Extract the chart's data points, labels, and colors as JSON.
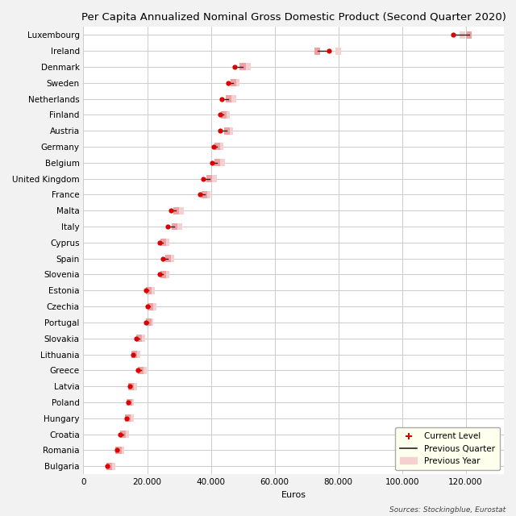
{
  "title": "Per Capita Annualized Nominal Gross Domestic Product (Second Quarter 2020)",
  "xlabel": "Euros",
  "source": "Sources: Stockingblue, Eurostat",
  "countries": [
    "Luxembourg",
    "Ireland",
    "Denmark",
    "Sweden",
    "Netherlands",
    "Finland",
    "Austria",
    "Germany",
    "Belgium",
    "United Kingdom",
    "France",
    "Malta",
    "Italy",
    "Cyprus",
    "Spain",
    "Slovenia",
    "Estonia",
    "Czechia",
    "Portugal",
    "Slovakia",
    "Lithuania",
    "Greece",
    "Latvia",
    "Poland",
    "Hungary",
    "Croatia",
    "Romania",
    "Bulgaria"
  ],
  "current": [
    116000,
    77000,
    47500,
    45500,
    43500,
    43000,
    43000,
    41000,
    40500,
    37500,
    36500,
    27500,
    26500,
    24000,
    25000,
    24000,
    19500,
    20000,
    19500,
    16500,
    15500,
    17000,
    14500,
    14000,
    13500,
    11500,
    10500,
    7500
  ],
  "prev_quarter": [
    121000,
    73500,
    50000,
    47000,
    45500,
    44000,
    45000,
    42000,
    42000,
    39500,
    38000,
    29000,
    28500,
    25000,
    26500,
    25000,
    20500,
    21000,
    20500,
    17500,
    16000,
    18000,
    15000,
    14500,
    14000,
    12500,
    11000,
    8000
  ],
  "prev_year": [
    119000,
    80000,
    51500,
    48000,
    47000,
    45000,
    46000,
    43000,
    43500,
    41000,
    39000,
    30500,
    30000,
    26000,
    27500,
    26000,
    21500,
    22000,
    21000,
    18500,
    17000,
    19000,
    16000,
    15000,
    15000,
    13500,
    12000,
    9000
  ],
  "dot_color": "#dd0000",
  "line_color": "#222222",
  "prev_quarter_color": "#f0a0a0",
  "prev_year_color": "#f5d0d0",
  "grid_color": "#cccccc",
  "bg_color": "#f2f2f2",
  "plot_bg_color": "#ffffff",
  "title_fontsize": 9.5,
  "label_fontsize": 8,
  "tick_fontsize": 7.5,
  "xticks": [
    0,
    20000,
    40000,
    60000,
    80000,
    100000,
    120000
  ],
  "xlim": [
    0,
    132000
  ]
}
